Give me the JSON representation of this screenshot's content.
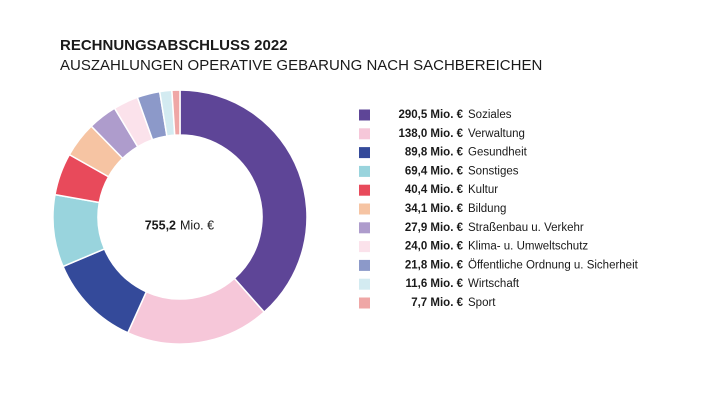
{
  "chart_data": {
    "type": "donut",
    "title": "RECHNUNGSABSCHLUSS 2022",
    "subtitle": "AUSZAHLUNGEN OPERATIVE GEBARUNG NACH SACHBEREICHEN",
    "center_value": "755,2",
    "center_unit": "Mio. €",
    "categories": [
      "Soziales",
      "Verwaltung",
      "Gesundheit",
      "Sonstiges",
      "Kultur",
      "Bildung",
      "Straßenbau u. Verkehr",
      "Klima- u. Umweltschutz",
      "Öffentliche Ordnung u. Sicherheit",
      "Wirtschaft",
      "Sport"
    ],
    "values": [
      290.5,
      138.0,
      89.8,
      69.4,
      40.4,
      34.1,
      27.9,
      24.0,
      21.8,
      11.6,
      7.7
    ],
    "value_labels": [
      "290,5 Mio. €",
      "138,0 Mio. €",
      "89,8 Mio. €",
      "69,4 Mio. €",
      "40,4 Mio. €",
      "34,1 Mio. €",
      "27,9 Mio. €",
      "24,0 Mio. €",
      "21,8 Mio. €",
      "11,6 Mio. €",
      "7,7 Mio. €"
    ],
    "colors": [
      "#5e4597",
      "#f6c7d9",
      "#344a9a",
      "#99d4dd",
      "#e84a5b",
      "#f6c4a3",
      "#ae9ccc",
      "#fbe2eb",
      "#8c99c9",
      "#d3ebf1",
      "#efa7a6"
    ]
  }
}
